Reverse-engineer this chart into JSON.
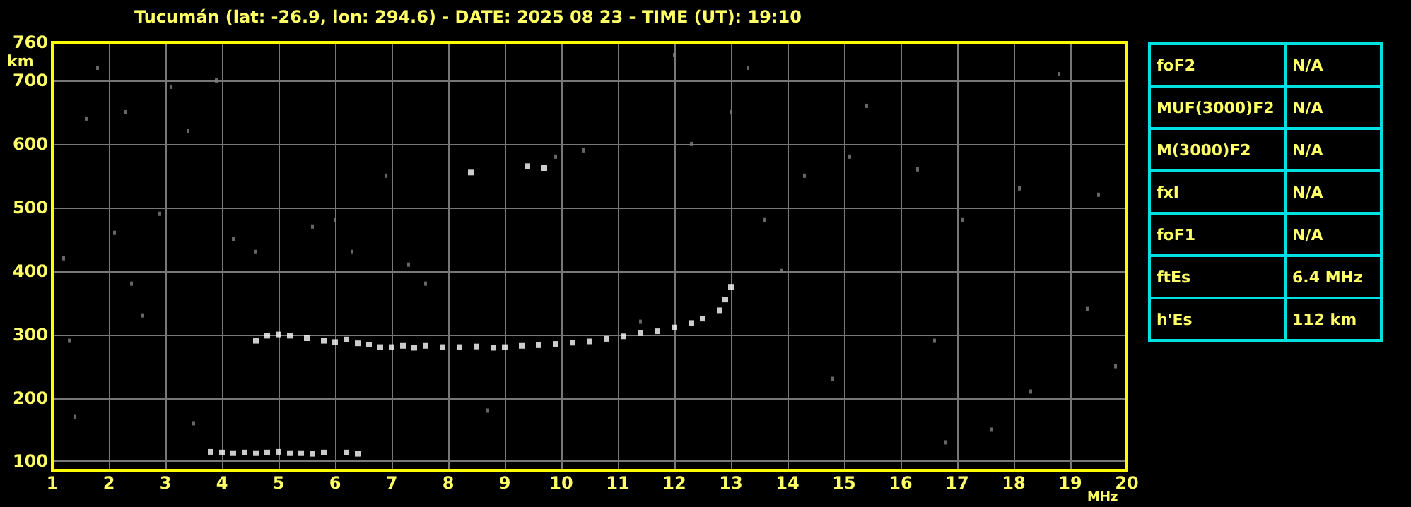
{
  "chart_data": [
    {
      "type": "scatter",
      "title": "Tucumán (lat: -26.9, lon: 294.6) - DATE: 2025 08 23 - TIME (UT): 19:10",
      "xlabel": "MHz",
      "ylabel": "km",
      "xlim": [
        1,
        20
      ],
      "ylim": [
        86,
        760
      ],
      "xticks": [
        1,
        2,
        3,
        4,
        5,
        6,
        7,
        8,
        9,
        10,
        11,
        12,
        13,
        14,
        15,
        16,
        17,
        18,
        19,
        20
      ],
      "yticks": [
        100,
        200,
        300,
        400,
        500,
        600,
        700,
        760
      ],
      "grid": true,
      "marker": "square",
      "series": [
        {
          "color": "#808080",
          "x": [
            1.2,
            1.3,
            1.4,
            1.6,
            1.8,
            2.1,
            2.3,
            2.4,
            2.6,
            2.9,
            3.1,
            3.4,
            3.5,
            3.9,
            4.2,
            4.6,
            5.6,
            6.0,
            6.3,
            6.9,
            7.3,
            7.6,
            8.7,
            9.9,
            10.4,
            11.4,
            12.0,
            12.3,
            13.0,
            13.3,
            13.6,
            13.9,
            14.3,
            14.8,
            15.1,
            15.4,
            16.3,
            16.6,
            16.8,
            17.1,
            17.6,
            18.1,
            18.3,
            18.8,
            19.3,
            19.5,
            19.8
          ],
          "values": [
            420,
            290,
            170,
            640,
            720,
            460,
            650,
            380,
            330,
            490,
            690,
            620,
            160,
            700,
            450,
            430,
            470,
            480,
            430,
            550,
            410,
            380,
            180,
            580,
            590,
            320,
            740,
            600,
            650,
            720,
            480,
            400,
            550,
            230,
            580,
            660,
            560,
            290,
            130,
            480,
            150,
            530,
            210,
            710,
            340,
            520,
            250
          ]
        },
        {
          "color": "#ffffff",
          "x": [
            4.6,
            4.8,
            5.0,
            5.2,
            5.5,
            5.8,
            6.0,
            6.2,
            6.4,
            6.6,
            6.8,
            7.0,
            7.2,
            7.4,
            7.6,
            7.9,
            8.2,
            8.5,
            8.8,
            9.0,
            9.3,
            9.6,
            9.9,
            10.2,
            10.5,
            10.8,
            11.1,
            11.4,
            11.7,
            12.0,
            12.3,
            12.5,
            12.8,
            12.9,
            13.0,
            8.4,
            9.4,
            9.7
          ],
          "values": [
            290,
            298,
            300,
            298,
            294,
            290,
            288,
            292,
            286,
            284,
            280,
            280,
            282,
            279,
            282,
            280,
            280,
            281,
            279,
            280,
            282,
            283,
            285,
            287,
            289,
            293,
            297,
            302,
            305,
            311,
            318,
            325,
            338,
            355,
            375,
            555,
            565,
            562
          ]
        },
        {
          "color": "#ffffff",
          "x": [
            3.8,
            4.0,
            4.2,
            4.4,
            4.6,
            4.8,
            5.0,
            5.2,
            5.4,
            5.6,
            5.8,
            6.2,
            6.4
          ],
          "values": [
            115,
            114,
            113,
            114,
            113,
            114,
            115,
            113,
            113,
            112,
            114,
            114,
            112
          ]
        }
      ]
    },
    {
      "type": "other",
      "categories": [
        "foF2",
        "MUF(3000)F2",
        "M(3000)F2",
        "fxI",
        "foF1",
        "ftEs",
        "h'Es"
      ],
      "value_labels": [
        "N/A",
        "N/A",
        "N/A",
        "N/A",
        "N/A",
        "6.4 MHz",
        "112 km"
      ],
      "color": "#00e0e0"
    }
  ]
}
